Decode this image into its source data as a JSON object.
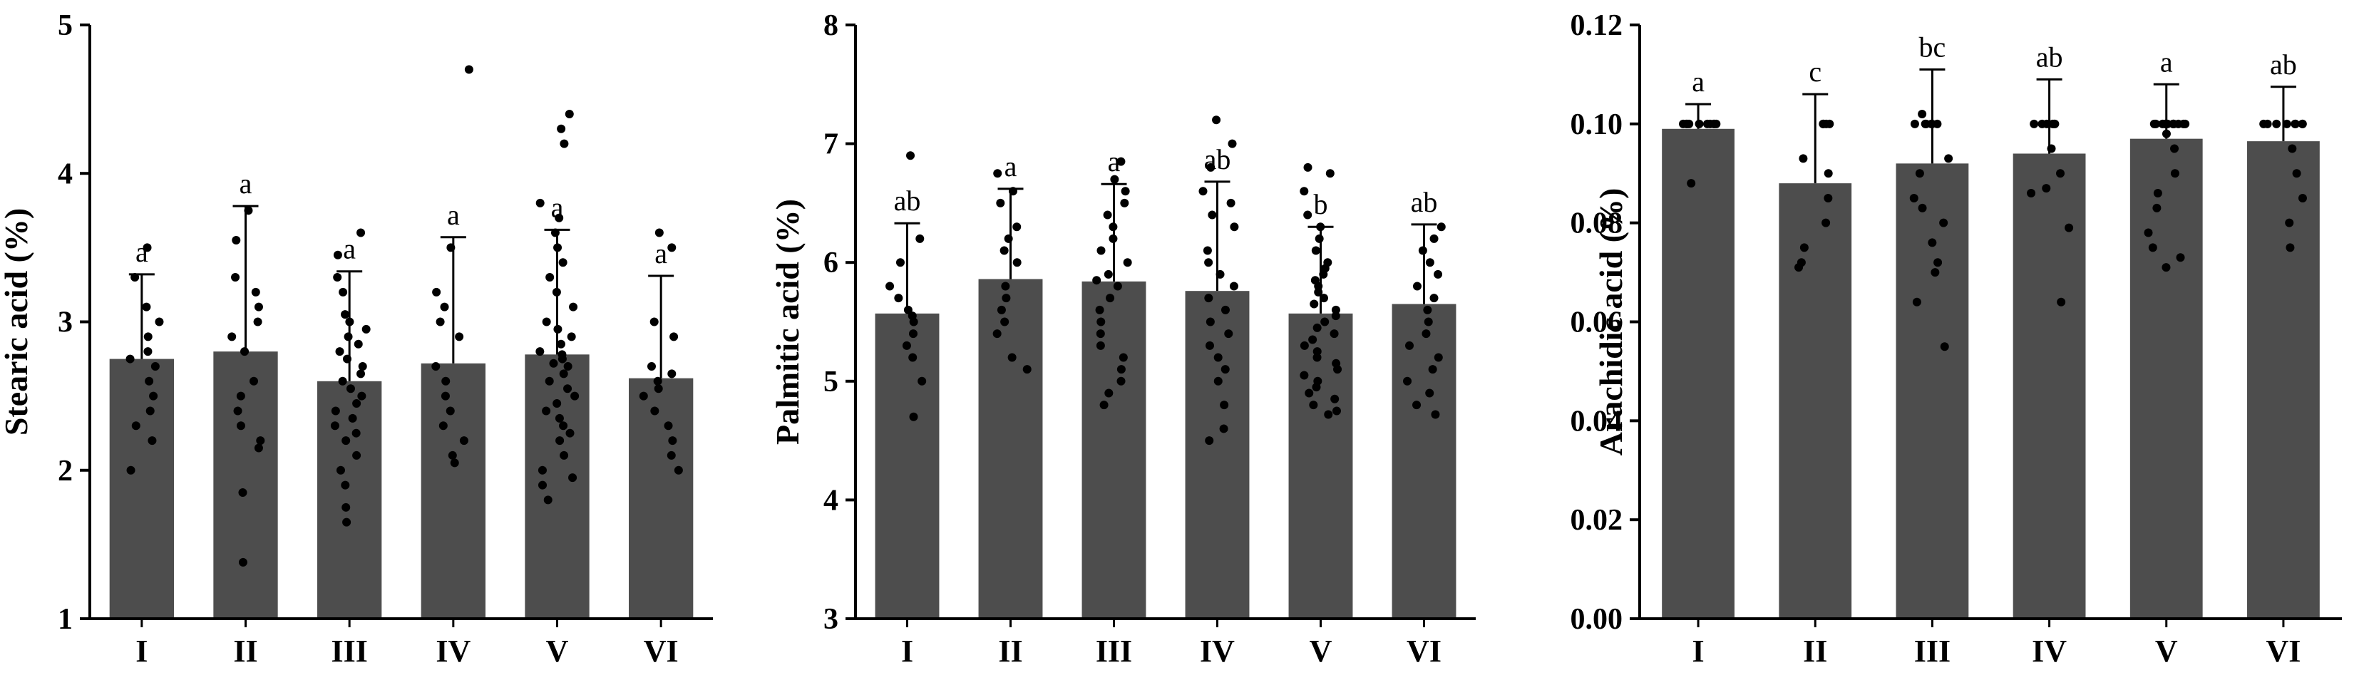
{
  "chart_data": [
    {
      "type": "bar",
      "ylabel": "Stearic acid (%)",
      "ylim": [
        1,
        5
      ],
      "yticks": [
        "1",
        "2",
        "3",
        "4",
        "5"
      ],
      "categories": [
        "I",
        "II",
        "III",
        "IV",
        "V",
        "VI"
      ],
      "values": [
        2.75,
        2.8,
        2.6,
        2.72,
        2.78,
        2.62
      ],
      "sd": [
        0.57,
        0.98,
        0.74,
        0.85,
        0.84,
        0.69
      ],
      "letters": [
        "a",
        "a",
        "a",
        "a",
        "a",
        "a"
      ],
      "bar_color": "#4d4d4d",
      "points": [
        [
          3.5,
          3.3,
          3.1,
          3.0,
          2.9,
          2.8,
          2.75,
          2.7,
          2.6,
          2.5,
          2.4,
          2.3,
          2.2,
          2.0
        ],
        [
          3.75,
          3.55,
          3.3,
          3.2,
          3.1,
          3.0,
          2.9,
          2.8,
          2.6,
          2.5,
          2.4,
          2.3,
          2.2,
          2.15,
          1.85,
          1.38
        ],
        [
          3.6,
          3.45,
          3.3,
          3.2,
          3.05,
          3.0,
          2.95,
          2.9,
          2.85,
          2.8,
          2.75,
          2.7,
          2.65,
          2.6,
          2.55,
          2.5,
          2.45,
          2.4,
          2.35,
          2.3,
          2.25,
          2.2,
          2.1,
          2.0,
          1.9,
          1.75,
          1.65
        ],
        [
          4.7,
          3.5,
          3.2,
          3.1,
          3.0,
          2.9,
          2.7,
          2.6,
          2.5,
          2.4,
          2.3,
          2.2,
          2.1,
          2.05
        ],
        [
          4.4,
          4.3,
          4.2,
          3.8,
          3.7,
          3.6,
          3.5,
          3.4,
          3.3,
          3.2,
          3.1,
          3.0,
          2.95,
          2.9,
          2.85,
          2.8,
          2.78,
          2.75,
          2.72,
          2.7,
          2.65,
          2.6,
          2.55,
          2.5,
          2.45,
          2.4,
          2.35,
          2.3,
          2.25,
          2.2,
          2.1,
          2.0,
          1.95,
          1.9,
          1.8
        ],
        [
          3.6,
          3.5,
          3.0,
          2.9,
          2.7,
          2.65,
          2.6,
          2.55,
          2.5,
          2.4,
          2.3,
          2.2,
          2.1,
          2.0
        ]
      ]
    },
    {
      "type": "bar",
      "ylabel": "Palmitic acid (%)",
      "ylim": [
        3,
        8
      ],
      "yticks": [
        "3",
        "4",
        "5",
        "6",
        "7",
        "8"
      ],
      "categories": [
        "I",
        "II",
        "III",
        "IV",
        "V",
        "VI"
      ],
      "values": [
        5.57,
        5.86,
        5.84,
        5.76,
        5.57,
        5.65
      ],
      "sd": [
        0.76,
        0.76,
        0.82,
        0.92,
        0.73,
        0.67
      ],
      "letters": [
        "ab",
        "a",
        "a",
        "ab",
        "b",
        "ab"
      ],
      "bar_color": "#4d4d4d",
      "points": [
        [
          6.9,
          6.2,
          6.0,
          5.8,
          5.7,
          5.6,
          5.55,
          5.5,
          5.4,
          5.3,
          5.2,
          5.0,
          4.7
        ],
        [
          6.75,
          6.6,
          6.5,
          6.3,
          6.2,
          6.1,
          6.0,
          5.8,
          5.7,
          5.6,
          5.5,
          5.4,
          5.2,
          5.1
        ],
        [
          6.85,
          6.7,
          6.6,
          6.5,
          6.4,
          6.3,
          6.2,
          6.1,
          6.0,
          5.9,
          5.85,
          5.8,
          5.7,
          5.6,
          5.5,
          5.4,
          5.3,
          5.2,
          5.1,
          5.0,
          4.9,
          4.8
        ],
        [
          7.2,
          7.0,
          6.8,
          6.6,
          6.5,
          6.4,
          6.3,
          6.1,
          6.0,
          5.9,
          5.8,
          5.7,
          5.6,
          5.5,
          5.4,
          5.3,
          5.2,
          5.1,
          5.0,
          4.8,
          4.6,
          4.5
        ],
        [
          6.8,
          6.75,
          6.6,
          6.4,
          6.3,
          6.2,
          6.1,
          6.0,
          5.95,
          5.9,
          5.85,
          5.8,
          5.75,
          5.7,
          5.65,
          5.6,
          5.55,
          5.5,
          5.45,
          5.4,
          5.35,
          5.3,
          5.25,
          5.2,
          5.15,
          5.1,
          5.05,
          5.0,
          4.95,
          4.9,
          4.85,
          4.8,
          4.75,
          4.72
        ],
        [
          6.3,
          6.2,
          6.1,
          6.0,
          5.9,
          5.8,
          5.7,
          5.6,
          5.5,
          5.4,
          5.3,
          5.2,
          5.1,
          5.0,
          4.9,
          4.8,
          4.72
        ]
      ]
    },
    {
      "type": "bar",
      "ylabel": "Arachidic acid (%)",
      "ylim": [
        0,
        0.12
      ],
      "yticks": [
        "0.00",
        "0.02",
        "0.04",
        "0.06",
        "0.08",
        "0.10",
        "0.12"
      ],
      "categories": [
        "I",
        "II",
        "III",
        "IV",
        "V",
        "VI"
      ],
      "values": [
        0.099,
        0.088,
        0.092,
        0.094,
        0.097,
        0.0965
      ],
      "sd": [
        0.005,
        0.018,
        0.019,
        0.015,
        0.011,
        0.011
      ],
      "letters": [
        "a",
        "c",
        "bc",
        "ab",
        "a",
        "ab"
      ],
      "bar_color": "#4d4d4d",
      "points": [
        [
          0.1,
          0.1,
          0.1,
          0.1,
          0.1,
          0.1,
          0.1,
          0.1,
          0.1,
          0.1,
          0.088
        ],
        [
          0.1,
          0.1,
          0.1,
          0.1,
          0.093,
          0.09,
          0.085,
          0.08,
          0.075,
          0.072,
          0.071
        ],
        [
          0.102,
          0.1,
          0.1,
          0.1,
          0.1,
          0.1,
          0.1,
          0.093,
          0.09,
          0.085,
          0.083,
          0.08,
          0.076,
          0.072,
          0.07,
          0.064,
          0.055
        ],
        [
          0.1,
          0.1,
          0.1,
          0.1,
          0.1,
          0.1,
          0.095,
          0.09,
          0.087,
          0.086,
          0.079,
          0.064
        ],
        [
          0.1,
          0.1,
          0.1,
          0.1,
          0.1,
          0.1,
          0.1,
          0.1,
          0.1,
          0.1,
          0.1,
          0.1,
          0.098,
          0.095,
          0.09,
          0.086,
          0.083,
          0.078,
          0.075,
          0.073,
          0.071
        ],
        [
          0.1,
          0.1,
          0.1,
          0.1,
          0.1,
          0.1,
          0.1,
          0.1,
          0.095,
          0.09,
          0.085,
          0.08,
          0.075
        ]
      ]
    }
  ]
}
